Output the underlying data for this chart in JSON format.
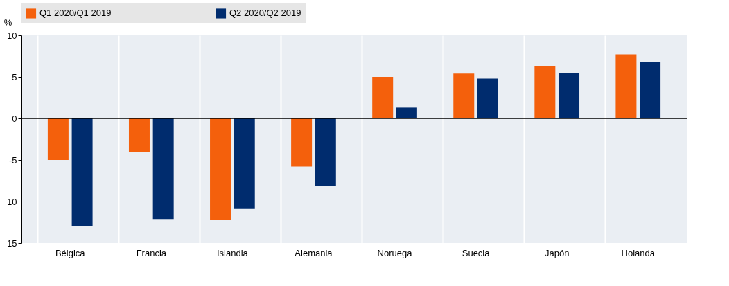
{
  "chart_data": {
    "type": "bar",
    "ylabel": "%",
    "categories": [
      "Bélgica",
      "Francia",
      "Islandia",
      "Alemania",
      "Noruega",
      "Suecia",
      "Japón",
      "Holanda"
    ],
    "series": [
      {
        "name": "Q1 2020/Q1 2019",
        "color": "#f4600c",
        "values": [
          -5,
          -4,
          -12.2,
          -5.8,
          5,
          5.4,
          6.3,
          7.7
        ]
      },
      {
        "name": "Q2 2020/Q2 2019",
        "color": "#002c6e",
        "values": [
          -13,
          -12.1,
          -10.9,
          -8.1,
          1.3,
          4.8,
          5.5,
          6.8
        ]
      }
    ],
    "ylim": [
      -15,
      10
    ],
    "yticks": [
      {
        "value": -15,
        "label": "15"
      },
      {
        "value": -10,
        "label": "10"
      },
      -5,
      0,
      5,
      10
    ],
    "ref_lines": [
      {
        "axis": "y",
        "value": 0,
        "color": "#000000"
      }
    ],
    "grid": "x",
    "legend": "top"
  }
}
